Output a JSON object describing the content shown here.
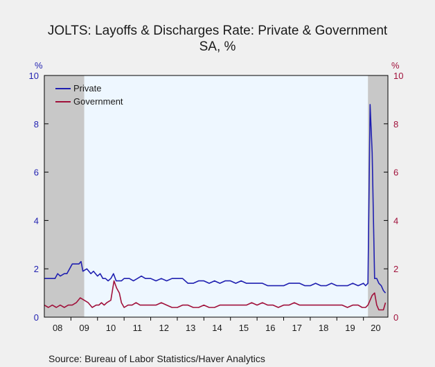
{
  "chart_data": {
    "type": "line",
    "title": "JOLTS: Layoffs & Discharges Rate: Private & Government",
    "subtitle": "SA, %",
    "left_axis": {
      "unit": "%",
      "ylim": [
        0,
        10
      ],
      "ticks": [
        "0",
        "2",
        "4",
        "6",
        "8",
        "10"
      ],
      "color": "#1f1fb0"
    },
    "right_axis": {
      "unit": "%",
      "ylim": [
        0,
        10
      ],
      "ticks": [
        "0",
        "2",
        "4",
        "6",
        "8",
        "10"
      ],
      "color": "#a0103a"
    },
    "x_range": [
      2008.0,
      2020.92
    ],
    "x_ticks": [
      "08",
      "09",
      "10",
      "11",
      "12",
      "13",
      "14",
      "15",
      "16",
      "17",
      "18",
      "19",
      "20"
    ],
    "recessions": [
      [
        2008.0,
        2009.5
      ],
      [
        2020.17,
        2020.92
      ]
    ],
    "grid": false,
    "legend_position": "top-left",
    "source": "Source:  Bureau of Labor Statistics/Haver Analytics",
    "series": [
      {
        "name": "Private",
        "color": "#1f1fb0",
        "points": [
          [
            2008.0,
            1.6
          ],
          [
            2008.25,
            1.6
          ],
          [
            2008.4,
            1.6
          ],
          [
            2008.5,
            1.8
          ],
          [
            2008.6,
            1.7
          ],
          [
            2008.75,
            1.8
          ],
          [
            2008.85,
            1.8
          ],
          [
            2008.95,
            2.0
          ],
          [
            2009.05,
            2.2
          ],
          [
            2009.15,
            2.2
          ],
          [
            2009.3,
            2.2
          ],
          [
            2009.38,
            2.3
          ],
          [
            2009.45,
            1.9
          ],
          [
            2009.6,
            2.0
          ],
          [
            2009.75,
            1.8
          ],
          [
            2009.85,
            1.9
          ],
          [
            2010.0,
            1.7
          ],
          [
            2010.1,
            1.8
          ],
          [
            2010.2,
            1.6
          ],
          [
            2010.3,
            1.6
          ],
          [
            2010.4,
            1.5
          ],
          [
            2010.5,
            1.6
          ],
          [
            2010.6,
            1.8
          ],
          [
            2010.7,
            1.5
          ],
          [
            2010.8,
            1.5
          ],
          [
            2010.9,
            1.5
          ],
          [
            2011.0,
            1.6
          ],
          [
            2011.2,
            1.6
          ],
          [
            2011.35,
            1.5
          ],
          [
            2011.5,
            1.6
          ],
          [
            2011.65,
            1.7
          ],
          [
            2011.8,
            1.6
          ],
          [
            2012.0,
            1.6
          ],
          [
            2012.2,
            1.5
          ],
          [
            2012.4,
            1.6
          ],
          [
            2012.6,
            1.5
          ],
          [
            2012.8,
            1.6
          ],
          [
            2013.0,
            1.6
          ],
          [
            2013.2,
            1.6
          ],
          [
            2013.4,
            1.4
          ],
          [
            2013.6,
            1.4
          ],
          [
            2013.8,
            1.5
          ],
          [
            2014.0,
            1.5
          ],
          [
            2014.2,
            1.4
          ],
          [
            2014.4,
            1.5
          ],
          [
            2014.6,
            1.4
          ],
          [
            2014.8,
            1.5
          ],
          [
            2015.0,
            1.5
          ],
          [
            2015.2,
            1.4
          ],
          [
            2015.4,
            1.5
          ],
          [
            2015.6,
            1.4
          ],
          [
            2015.8,
            1.4
          ],
          [
            2016.0,
            1.4
          ],
          [
            2016.2,
            1.4
          ],
          [
            2016.4,
            1.3
          ],
          [
            2016.6,
            1.3
          ],
          [
            2016.8,
            1.3
          ],
          [
            2017.0,
            1.3
          ],
          [
            2017.2,
            1.4
          ],
          [
            2017.4,
            1.4
          ],
          [
            2017.6,
            1.4
          ],
          [
            2017.8,
            1.3
          ],
          [
            2018.0,
            1.3
          ],
          [
            2018.2,
            1.4
          ],
          [
            2018.4,
            1.3
          ],
          [
            2018.6,
            1.3
          ],
          [
            2018.8,
            1.4
          ],
          [
            2019.0,
            1.3
          ],
          [
            2019.2,
            1.3
          ],
          [
            2019.4,
            1.3
          ],
          [
            2019.6,
            1.4
          ],
          [
            2019.8,
            1.3
          ],
          [
            2020.0,
            1.4
          ],
          [
            2020.08,
            1.3
          ],
          [
            2020.17,
            1.4
          ],
          [
            2020.25,
            8.8
          ],
          [
            2020.33,
            6.8
          ],
          [
            2020.42,
            1.6
          ],
          [
            2020.5,
            1.6
          ],
          [
            2020.58,
            1.4
          ],
          [
            2020.67,
            1.3
          ],
          [
            2020.75,
            1.1
          ],
          [
            2020.83,
            1.0
          ]
        ]
      },
      {
        "name": "Government",
        "color": "#a0103a",
        "points": [
          [
            2008.0,
            0.5
          ],
          [
            2008.15,
            0.4
          ],
          [
            2008.3,
            0.5
          ],
          [
            2008.45,
            0.4
          ],
          [
            2008.6,
            0.5
          ],
          [
            2008.75,
            0.4
          ],
          [
            2008.9,
            0.5
          ],
          [
            2009.05,
            0.5
          ],
          [
            2009.2,
            0.6
          ],
          [
            2009.35,
            0.8
          ],
          [
            2009.5,
            0.7
          ],
          [
            2009.65,
            0.6
          ],
          [
            2009.8,
            0.4
          ],
          [
            2009.95,
            0.5
          ],
          [
            2010.05,
            0.5
          ],
          [
            2010.15,
            0.6
          ],
          [
            2010.25,
            0.5
          ],
          [
            2010.35,
            0.6
          ],
          [
            2010.5,
            0.7
          ],
          [
            2010.62,
            1.5
          ],
          [
            2010.72,
            1.2
          ],
          [
            2010.82,
            1.0
          ],
          [
            2010.9,
            0.6
          ],
          [
            2011.0,
            0.4
          ],
          [
            2011.15,
            0.5
          ],
          [
            2011.3,
            0.5
          ],
          [
            2011.45,
            0.6
          ],
          [
            2011.6,
            0.5
          ],
          [
            2011.75,
            0.5
          ],
          [
            2012.0,
            0.5
          ],
          [
            2012.2,
            0.5
          ],
          [
            2012.4,
            0.6
          ],
          [
            2012.6,
            0.5
          ],
          [
            2012.8,
            0.4
          ],
          [
            2013.0,
            0.4
          ],
          [
            2013.2,
            0.5
          ],
          [
            2013.4,
            0.5
          ],
          [
            2013.6,
            0.4
          ],
          [
            2013.8,
            0.4
          ],
          [
            2014.0,
            0.5
          ],
          [
            2014.2,
            0.4
          ],
          [
            2014.4,
            0.4
          ],
          [
            2014.6,
            0.5
          ],
          [
            2014.8,
            0.5
          ],
          [
            2015.0,
            0.5
          ],
          [
            2015.2,
            0.5
          ],
          [
            2015.4,
            0.5
          ],
          [
            2015.6,
            0.5
          ],
          [
            2015.8,
            0.6
          ],
          [
            2016.0,
            0.5
          ],
          [
            2016.2,
            0.6
          ],
          [
            2016.4,
            0.5
          ],
          [
            2016.6,
            0.5
          ],
          [
            2016.8,
            0.4
          ],
          [
            2017.0,
            0.5
          ],
          [
            2017.2,
            0.5
          ],
          [
            2017.4,
            0.6
          ],
          [
            2017.6,
            0.5
          ],
          [
            2017.8,
            0.5
          ],
          [
            2018.0,
            0.5
          ],
          [
            2018.2,
            0.5
          ],
          [
            2018.4,
            0.5
          ],
          [
            2018.6,
            0.5
          ],
          [
            2018.8,
            0.5
          ],
          [
            2019.0,
            0.5
          ],
          [
            2019.2,
            0.5
          ],
          [
            2019.4,
            0.4
          ],
          [
            2019.6,
            0.5
          ],
          [
            2019.8,
            0.5
          ],
          [
            2019.95,
            0.4
          ],
          [
            2020.08,
            0.4
          ],
          [
            2020.17,
            0.5
          ],
          [
            2020.25,
            0.7
          ],
          [
            2020.33,
            0.9
          ],
          [
            2020.42,
            1.0
          ],
          [
            2020.5,
            0.5
          ],
          [
            2020.58,
            0.3
          ],
          [
            2020.67,
            0.3
          ],
          [
            2020.75,
            0.3
          ],
          [
            2020.83,
            0.6
          ]
        ]
      }
    ]
  }
}
